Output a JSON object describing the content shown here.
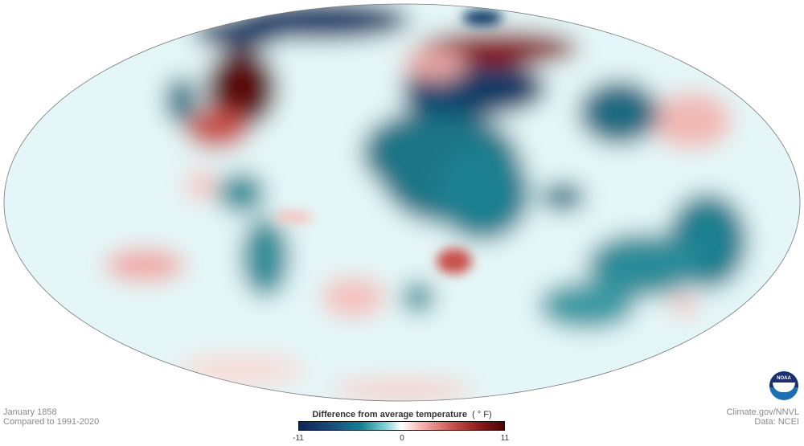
{
  "caption": {
    "date": "January 1858",
    "baseline": "Compared to 1991-2020"
  },
  "credits": {
    "source": "Climate.gov/NNVL",
    "data": "Data: NCEI"
  },
  "legend": {
    "title": "Difference from average temperature",
    "unit": "( ° F)",
    "min_label": "-11",
    "mid_label": "0",
    "max_label": "11",
    "range": [
      -11,
      11
    ],
    "colors": [
      "#0f2557",
      "#11808f",
      "#ffffff",
      "#c9504a",
      "#4a0606"
    ]
  },
  "logo": {
    "text": "NOAA"
  },
  "map": {
    "projection": "Mollweide",
    "variable": "temperature anomaly"
  }
}
